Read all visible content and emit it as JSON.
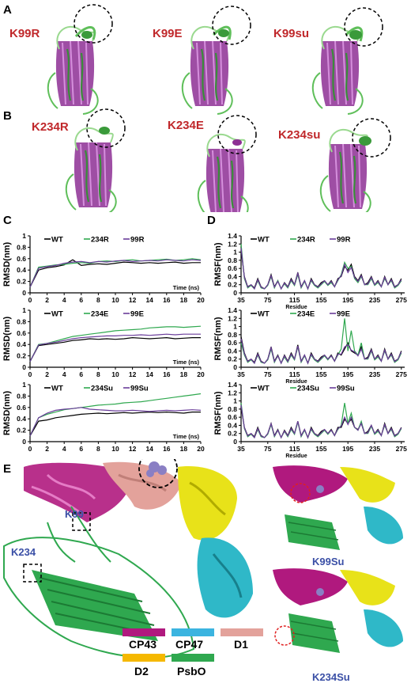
{
  "panels": {
    "A": {
      "letter": "A",
      "labels": [
        "K99R",
        "K99E",
        "K99su"
      ]
    },
    "B": {
      "letter": "B",
      "labels": [
        "K234R",
        "K234E",
        "K234su"
      ]
    },
    "C": {
      "letter": "C"
    },
    "D": {
      "letter": "D"
    },
    "E": {
      "letter": "E",
      "site_labels": [
        "K99",
        "K234"
      ],
      "inset_labels": [
        "K99Su",
        "K234Su"
      ],
      "legend": [
        {
          "name": "CP43",
          "color": "#b0197e"
        },
        {
          "name": "CP47",
          "color": "#3bb4e0"
        },
        {
          "name": "D1",
          "color": "#e3a29b"
        },
        {
          "name": "D2",
          "color": "#f5b800"
        },
        {
          "name": "PsbO",
          "color": "#2fa84f"
        }
      ]
    }
  },
  "colors": {
    "wt": "#000000",
    "k234": "#2fa84f",
    "k99": "#6a3d9a",
    "label_red": "#c0282b"
  },
  "chart_data": [
    {
      "type": "line",
      "panel": "C",
      "ylabel": "RMSD(nm)",
      "xlabel": "Time (ns)",
      "xlim": [
        0,
        20
      ],
      "ylim": [
        0,
        1
      ],
      "xticks": [
        "0",
        "2",
        "4",
        "6",
        "8",
        "10",
        "12",
        "14",
        "16",
        "18",
        "20"
      ],
      "yticks": [
        "0",
        "0.2",
        "0.4",
        "0.6",
        "0.8",
        "1"
      ],
      "x": [
        0,
        1,
        2,
        3,
        4,
        5,
        6,
        7,
        8,
        9,
        10,
        11,
        12,
        13,
        14,
        15,
        16,
        17,
        18,
        19,
        20
      ],
      "series": [
        {
          "name": "WT",
          "values": [
            0.1,
            0.4,
            0.44,
            0.46,
            0.49,
            0.58,
            0.48,
            0.5,
            0.51,
            0.5,
            0.52,
            0.54,
            0.53,
            0.52,
            0.53,
            0.52,
            0.53,
            0.54,
            0.52,
            0.53,
            0.53
          ]
        },
        {
          "name": "234R",
          "values": [
            0.1,
            0.45,
            0.47,
            0.49,
            0.5,
            0.52,
            0.53,
            0.52,
            0.55,
            0.56,
            0.55,
            0.57,
            0.58,
            0.56,
            0.57,
            0.58,
            0.59,
            0.57,
            0.58,
            0.6,
            0.58
          ]
        },
        {
          "name": "99R",
          "values": [
            0.1,
            0.43,
            0.46,
            0.48,
            0.52,
            0.54,
            0.55,
            0.53,
            0.55,
            0.54,
            0.56,
            0.57,
            0.55,
            0.56,
            0.57,
            0.56,
            0.58,
            0.57,
            0.56,
            0.58,
            0.57
          ]
        }
      ]
    },
    {
      "type": "line",
      "panel": "C",
      "ylabel": "RMSD(nm)",
      "xlabel": "Time (ns)",
      "xlim": [
        0,
        20
      ],
      "ylim": [
        0,
        1
      ],
      "xticks": [
        "0",
        "2",
        "4",
        "6",
        "8",
        "10",
        "12",
        "14",
        "16",
        "18",
        "20"
      ],
      "yticks": [
        "0",
        "0.2",
        "0.4",
        "0.6",
        "0.8",
        "1"
      ],
      "x": [
        0,
        1,
        2,
        3,
        4,
        5,
        6,
        7,
        8,
        9,
        10,
        11,
        12,
        13,
        14,
        15,
        16,
        17,
        18,
        19,
        20
      ],
      "series": [
        {
          "name": "WT",
          "values": [
            0.1,
            0.38,
            0.4,
            0.42,
            0.44,
            0.47,
            0.48,
            0.5,
            0.49,
            0.5,
            0.49,
            0.5,
            0.52,
            0.51,
            0.5,
            0.51,
            0.52,
            0.5,
            0.51,
            0.52,
            0.52
          ]
        },
        {
          "name": "234E",
          "values": [
            0.1,
            0.4,
            0.42,
            0.46,
            0.5,
            0.54,
            0.56,
            0.58,
            0.6,
            0.62,
            0.64,
            0.65,
            0.66,
            0.67,
            0.69,
            0.7,
            0.71,
            0.71,
            0.7,
            0.71,
            0.72
          ]
        },
        {
          "name": "99E",
          "values": [
            0.1,
            0.39,
            0.42,
            0.44,
            0.47,
            0.5,
            0.52,
            0.53,
            0.54,
            0.55,
            0.55,
            0.56,
            0.56,
            0.57,
            0.56,
            0.57,
            0.58,
            0.57,
            0.58,
            0.58,
            0.58
          ]
        }
      ]
    },
    {
      "type": "line",
      "panel": "C",
      "ylabel": "RMSD(nm)",
      "xlabel": "Time (ns)",
      "xlim": [
        0,
        20
      ],
      "ylim": [
        0,
        1
      ],
      "xticks": [
        "0",
        "2",
        "4",
        "6",
        "8",
        "10",
        "12",
        "14",
        "16",
        "18",
        "20"
      ],
      "yticks": [
        "0",
        "0.2",
        "0.4",
        "0.6",
        "0.8",
        "1"
      ],
      "x": [
        0,
        1,
        2,
        3,
        4,
        5,
        6,
        7,
        8,
        9,
        10,
        11,
        12,
        13,
        14,
        15,
        16,
        17,
        18,
        19,
        20
      ],
      "series": [
        {
          "name": "WT",
          "values": [
            0.1,
            0.36,
            0.38,
            0.42,
            0.44,
            0.46,
            0.48,
            0.49,
            0.5,
            0.49,
            0.5,
            0.51,
            0.5,
            0.51,
            0.52,
            0.51,
            0.52,
            0.51,
            0.5,
            0.52,
            0.52
          ]
        },
        {
          "name": "234Su",
          "values": [
            0.1,
            0.42,
            0.48,
            0.52,
            0.56,
            0.58,
            0.6,
            0.62,
            0.64,
            0.65,
            0.66,
            0.68,
            0.69,
            0.7,
            0.72,
            0.74,
            0.76,
            0.78,
            0.8,
            0.82,
            0.84
          ]
        },
        {
          "name": "99Su",
          "values": [
            0.1,
            0.42,
            0.5,
            0.55,
            0.57,
            0.58,
            0.6,
            0.57,
            0.56,
            0.55,
            0.54,
            0.54,
            0.55,
            0.54,
            0.53,
            0.54,
            0.55,
            0.54,
            0.55,
            0.56,
            0.55
          ]
        }
      ]
    },
    {
      "type": "line",
      "panel": "D",
      "ylabel": "RMSF(nm)",
      "xlabel": "Residue",
      "xlim": [
        35,
        280
      ],
      "ylim": [
        0,
        1.4
      ],
      "xticks": [
        "35",
        "75",
        "115",
        "155",
        "195",
        "235",
        "275"
      ],
      "yticks": [
        "0",
        "0.2",
        "0.4",
        "0.6",
        "0.8",
        "1",
        "1.2",
        "1.4"
      ],
      "x": [
        35,
        40,
        45,
        50,
        55,
        60,
        65,
        70,
        75,
        80,
        85,
        90,
        95,
        100,
        105,
        110,
        115,
        120,
        125,
        130,
        135,
        140,
        145,
        150,
        155,
        160,
        165,
        170,
        175,
        180,
        185,
        190,
        195,
        200,
        205,
        210,
        215,
        220,
        225,
        230,
        235,
        240,
        245,
        250,
        255,
        260,
        265,
        270,
        275
      ],
      "series": [
        {
          "name": "WT",
          "values": [
            1.05,
            0.4,
            0.15,
            0.2,
            0.12,
            0.35,
            0.15,
            0.1,
            0.2,
            0.45,
            0.15,
            0.3,
            0.1,
            0.25,
            0.15,
            0.35,
            0.2,
            0.5,
            0.15,
            0.3,
            0.1,
            0.35,
            0.2,
            0.15,
            0.25,
            0.3,
            0.2,
            0.3,
            0.15,
            0.35,
            0.4,
            0.65,
            0.55,
            0.7,
            0.4,
            0.3,
            0.45,
            0.2,
            0.25,
            0.4,
            0.2,
            0.3,
            0.15,
            0.4,
            0.2,
            0.35,
            0.15,
            0.2,
            0.35
          ]
        },
        {
          "name": "234R",
          "values": [
            1.2,
            0.35,
            0.12,
            0.18,
            0.1,
            0.3,
            0.12,
            0.1,
            0.18,
            0.4,
            0.12,
            0.3,
            0.1,
            0.22,
            0.12,
            0.3,
            0.18,
            0.45,
            0.12,
            0.28,
            0.1,
            0.3,
            0.18,
            0.12,
            0.2,
            0.28,
            0.18,
            0.25,
            0.15,
            0.3,
            0.45,
            0.75,
            0.6,
            0.65,
            0.35,
            0.25,
            0.4,
            0.2,
            0.2,
            0.35,
            0.18,
            0.25,
            0.15,
            0.35,
            0.2,
            0.3,
            0.12,
            0.18,
            0.3
          ]
        },
        {
          "name": "99R",
          "values": [
            1.1,
            0.38,
            0.14,
            0.2,
            0.1,
            0.32,
            0.14,
            0.1,
            0.2,
            0.42,
            0.14,
            0.28,
            0.1,
            0.24,
            0.14,
            0.32,
            0.2,
            0.48,
            0.14,
            0.3,
            0.1,
            0.32,
            0.2,
            0.14,
            0.22,
            0.3,
            0.2,
            0.28,
            0.15,
            0.32,
            0.42,
            0.7,
            0.5,
            0.62,
            0.38,
            0.28,
            0.42,
            0.2,
            0.22,
            0.38,
            0.2,
            0.28,
            0.15,
            0.38,
            0.2,
            0.32,
            0.14,
            0.2,
            0.32
          ]
        }
      ]
    },
    {
      "type": "line",
      "panel": "D",
      "ylabel": "RMSF(nm)",
      "xlabel": "Residue",
      "xlim": [
        35,
        280
      ],
      "ylim": [
        0,
        1.4
      ],
      "xticks": [
        "35",
        "75",
        "115",
        "155",
        "195",
        "235",
        "275"
      ],
      "yticks": [
        "0",
        "0.2",
        "0.4",
        "0.6",
        "0.8",
        "1",
        "1.2",
        "1.4"
      ],
      "x": [
        35,
        40,
        45,
        50,
        55,
        60,
        65,
        70,
        75,
        80,
        85,
        90,
        95,
        100,
        105,
        110,
        115,
        120,
        125,
        130,
        135,
        140,
        145,
        150,
        155,
        160,
        165,
        170,
        175,
        180,
        185,
        190,
        195,
        200,
        205,
        210,
        215,
        220,
        225,
        230,
        235,
        240,
        245,
        250,
        255,
        260,
        265,
        270,
        275
      ],
      "series": [
        {
          "name": "WT",
          "values": [
            0.75,
            0.35,
            0.15,
            0.2,
            0.12,
            0.35,
            0.15,
            0.1,
            0.2,
            0.5,
            0.15,
            0.3,
            0.1,
            0.3,
            0.15,
            0.35,
            0.2,
            0.55,
            0.15,
            0.3,
            0.1,
            0.35,
            0.2,
            0.15,
            0.25,
            0.3,
            0.2,
            0.3,
            0.15,
            0.35,
            0.3,
            0.45,
            0.6,
            0.4,
            0.35,
            0.3,
            0.5,
            0.2,
            0.25,
            0.45,
            0.2,
            0.3,
            0.15,
            0.45,
            0.2,
            0.35,
            0.15,
            0.2,
            0.4
          ]
        },
        {
          "name": "234E",
          "values": [
            0.6,
            0.3,
            0.12,
            0.18,
            0.1,
            0.3,
            0.12,
            0.1,
            0.18,
            0.45,
            0.12,
            0.28,
            0.1,
            0.25,
            0.12,
            0.3,
            0.18,
            0.5,
            0.12,
            0.28,
            0.1,
            0.3,
            0.18,
            0.12,
            0.2,
            0.28,
            0.18,
            0.28,
            0.15,
            0.3,
            0.45,
            1.2,
            0.4,
            0.9,
            0.4,
            0.3,
            0.6,
            0.2,
            0.2,
            0.4,
            0.18,
            0.25,
            0.15,
            0.4,
            0.2,
            0.3,
            0.12,
            0.18,
            0.35
          ]
        },
        {
          "name": "99E",
          "values": [
            0.7,
            0.33,
            0.14,
            0.2,
            0.1,
            0.32,
            0.14,
            0.1,
            0.2,
            0.48,
            0.14,
            0.28,
            0.1,
            0.28,
            0.14,
            0.32,
            0.2,
            0.52,
            0.14,
            0.3,
            0.1,
            0.32,
            0.2,
            0.14,
            0.22,
            0.3,
            0.2,
            0.28,
            0.15,
            0.32,
            0.32,
            0.5,
            0.55,
            0.42,
            0.38,
            0.28,
            0.45,
            0.2,
            0.22,
            0.42,
            0.2,
            0.28,
            0.15,
            0.42,
            0.2,
            0.32,
            0.14,
            0.2,
            0.38
          ]
        }
      ]
    },
    {
      "type": "line",
      "panel": "D",
      "ylabel": "RMSF(nm)",
      "xlabel": "Residue",
      "xlim": [
        35,
        280
      ],
      "ylim": [
        0,
        1.4
      ],
      "xticks": [
        "35",
        "75",
        "115",
        "155",
        "195",
        "235",
        "275"
      ],
      "yticks": [
        "0",
        "0.2",
        "0.4",
        "0.6",
        "0.8",
        "1",
        "1.2",
        "1.4"
      ],
      "x": [
        35,
        40,
        45,
        50,
        55,
        60,
        65,
        70,
        75,
        80,
        85,
        90,
        95,
        100,
        105,
        110,
        115,
        120,
        125,
        130,
        135,
        140,
        145,
        150,
        155,
        160,
        165,
        170,
        175,
        180,
        185,
        190,
        195,
        200,
        205,
        210,
        215,
        220,
        225,
        230,
        235,
        240,
        245,
        250,
        255,
        260,
        265,
        270,
        275
      ],
      "series": [
        {
          "name": "WT",
          "values": [
            0.85,
            0.35,
            0.15,
            0.2,
            0.12,
            0.35,
            0.15,
            0.1,
            0.2,
            0.45,
            0.15,
            0.3,
            0.1,
            0.28,
            0.15,
            0.35,
            0.2,
            0.5,
            0.15,
            0.3,
            0.1,
            0.35,
            0.2,
            0.15,
            0.25,
            0.3,
            0.2,
            0.3,
            0.15,
            0.35,
            0.35,
            0.55,
            0.45,
            0.55,
            0.35,
            0.3,
            0.45,
            0.2,
            0.25,
            0.4,
            0.2,
            0.3,
            0.15,
            0.45,
            0.2,
            0.35,
            0.15,
            0.2,
            0.35
          ]
        },
        {
          "name": "234Su",
          "values": [
            0.95,
            0.32,
            0.12,
            0.18,
            0.1,
            0.3,
            0.12,
            0.1,
            0.18,
            0.42,
            0.12,
            0.28,
            0.1,
            0.25,
            0.12,
            0.3,
            0.18,
            0.48,
            0.12,
            0.28,
            0.1,
            0.3,
            0.18,
            0.12,
            0.2,
            0.28,
            0.18,
            0.28,
            0.15,
            0.3,
            0.4,
            0.95,
            0.45,
            0.7,
            0.35,
            0.28,
            0.5,
            0.2,
            0.2,
            0.38,
            0.18,
            0.25,
            0.15,
            0.4,
            0.2,
            0.3,
            0.12,
            0.18,
            0.32
          ]
        },
        {
          "name": "99Su",
          "values": [
            0.9,
            0.34,
            0.14,
            0.2,
            0.1,
            0.32,
            0.14,
            0.1,
            0.2,
            0.44,
            0.14,
            0.28,
            0.1,
            0.26,
            0.14,
            0.32,
            0.2,
            0.5,
            0.14,
            0.3,
            0.1,
            0.32,
            0.2,
            0.14,
            0.22,
            0.3,
            0.2,
            0.28,
            0.15,
            0.32,
            0.38,
            0.6,
            0.42,
            0.6,
            0.36,
            0.28,
            0.45,
            0.2,
            0.22,
            0.4,
            0.2,
            0.28,
            0.15,
            0.42,
            0.2,
            0.32,
            0.14,
            0.2,
            0.34
          ]
        }
      ]
    }
  ]
}
